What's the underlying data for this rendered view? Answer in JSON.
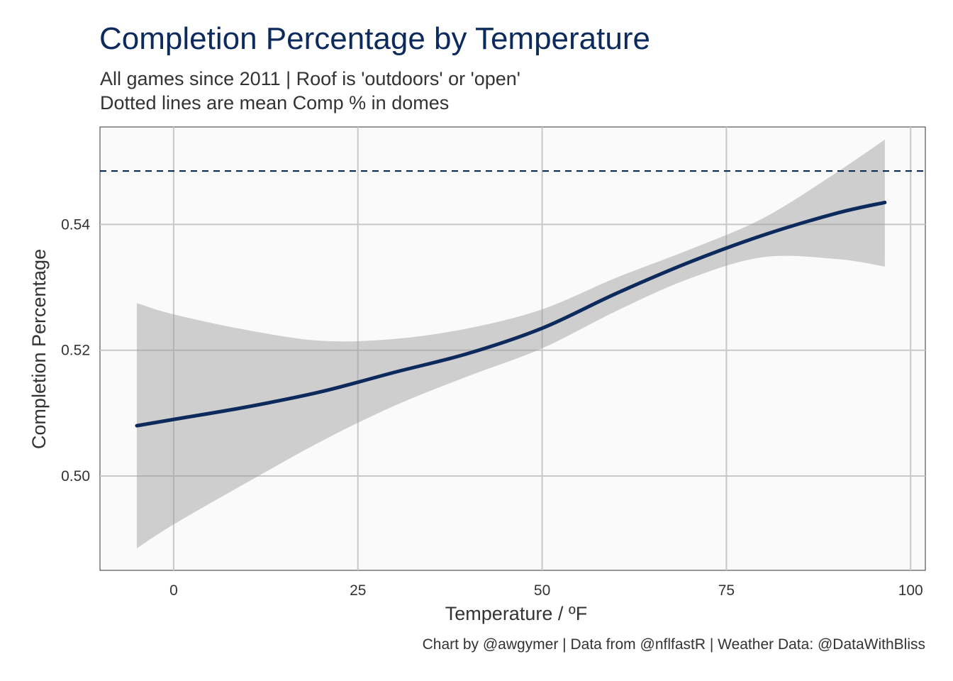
{
  "chart_data": {
    "type": "line",
    "title": "Completion Percentage by Temperature",
    "subtitle": [
      "All games since 2011 | Roof is 'outdoors' or 'open'",
      "Dotted lines are mean Comp % in domes"
    ],
    "xlabel": "Temperature / ºF",
    "ylabel": "Completion Percentage",
    "caption": "Chart by @awgymer | Data from @nflfastR | Weather Data: @DataWithBliss",
    "xlim": [
      -10,
      102
    ],
    "ylim": [
      0.485,
      0.5555
    ],
    "x_ticks": [
      0,
      25,
      50,
      75,
      100
    ],
    "x_tick_labels": [
      "0",
      "25",
      "50",
      "75",
      "100"
    ],
    "y_ticks": [
      0.5,
      0.52,
      0.54
    ],
    "y_tick_labels": [
      "0.50",
      "0.52",
      "0.54"
    ],
    "grid": true,
    "series": [
      {
        "style": "smooth-line",
        "color": "#0d2a5c",
        "x": [
          -5,
          0,
          10,
          20,
          30,
          40,
          50,
          60,
          70,
          80,
          90,
          96.5
        ],
        "y": [
          0.508,
          0.509,
          0.511,
          0.5134,
          0.5165,
          0.5195,
          0.5235,
          0.529,
          0.534,
          0.5383,
          0.5418,
          0.5435
        ],
        "ci_upper": [
          0.5275,
          0.5257,
          0.5232,
          0.5215,
          0.5218,
          0.5235,
          0.5265,
          0.5315,
          0.536,
          0.541,
          0.5483,
          0.5535
        ],
        "ci_lower": [
          0.4885,
          0.4923,
          0.499,
          0.5055,
          0.5112,
          0.5159,
          0.5203,
          0.5262,
          0.5314,
          0.5348,
          0.5345,
          0.5333
        ]
      }
    ],
    "reference_lines": [
      {
        "orientation": "horizontal",
        "y": 0.5485,
        "style": "dashed",
        "color": "#0d2a5c"
      }
    ],
    "colors": {
      "line": "#0d2a5c",
      "ribbon": "#cccccc",
      "panel": "#fafafa",
      "grid": "#c8c8c8",
      "text": "#333333",
      "title": "#0d2a5c"
    }
  }
}
